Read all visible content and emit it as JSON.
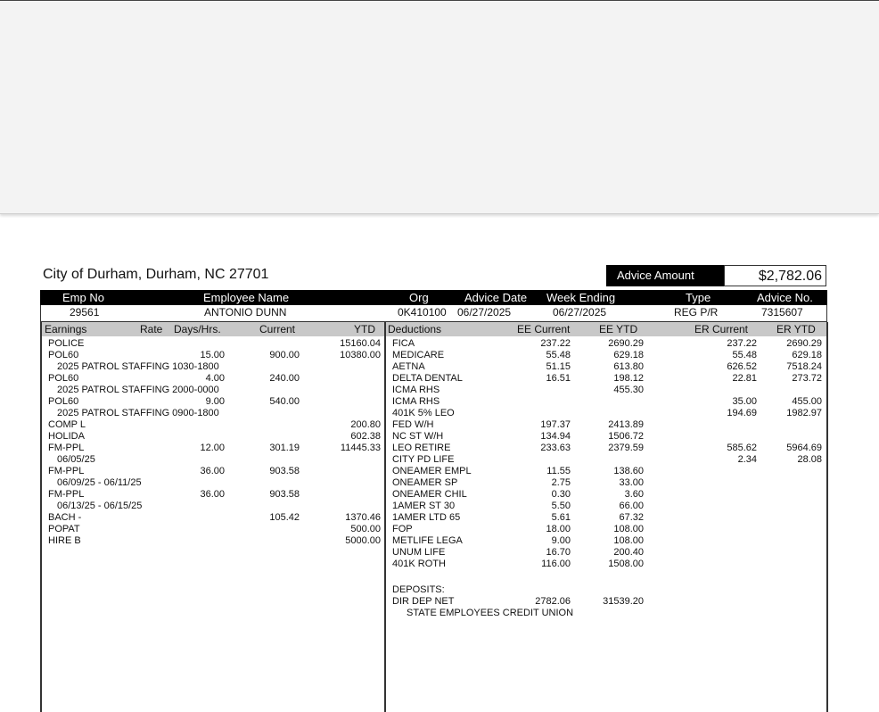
{
  "employer": "City of Durham, Durham, NC 27701",
  "advice_amount": {
    "label": "Advice Amount",
    "value": "$2,782.06"
  },
  "header": {
    "emp_no": "Emp No",
    "employee_name": "Employee Name",
    "org": "Org",
    "advice_date": "Advice Date",
    "week_ending": "Week Ending",
    "type": "Type",
    "advice_no": "Advice No."
  },
  "values": {
    "emp_no": "29561",
    "employee_name": "ANTONIO DUNN",
    "org": "0K410100",
    "advice_date": "06/27/2025",
    "week_ending": "06/27/2025",
    "type": "REG P/R",
    "advice_no": "7315607"
  },
  "earnings_header": {
    "earnings": "Earnings",
    "rate": "Rate",
    "days": "Days/Hrs.",
    "current": "Current",
    "ytd": "YTD"
  },
  "deductions_header": {
    "deductions": "Deductions",
    "ee_current": "EE Current",
    "ee_ytd": "EE YTD",
    "er_current": "ER Current",
    "er_ytd": "ER YTD"
  },
  "earnings": [
    {
      "name": "POLICE",
      "days": "",
      "current": "",
      "ytd": "15160.04"
    },
    {
      "name": "POL60",
      "days": "15.00",
      "current": "900.00",
      "ytd": "10380.00"
    },
    {
      "note": "2025 PATROL STAFFING 1030-1800"
    },
    {
      "name": "POL60",
      "days": "4.00",
      "current": "240.00",
      "ytd": ""
    },
    {
      "note": "2025 PATROL STAFFING 2000-0000"
    },
    {
      "name": "POL60",
      "days": "9.00",
      "current": "540.00",
      "ytd": ""
    },
    {
      "note": "2025 PATROL STAFFING 0900-1800"
    },
    {
      "name": "COMP L",
      "days": "",
      "current": "",
      "ytd": "200.80"
    },
    {
      "name": "HOLIDA",
      "days": "",
      "current": "",
      "ytd": "602.38"
    },
    {
      "name": "FM-PPL",
      "days": "12.00",
      "current": "301.19",
      "ytd": "11445.33"
    },
    {
      "note": "06/05/25"
    },
    {
      "name": "FM-PPL",
      "days": "36.00",
      "current": "903.58",
      "ytd": ""
    },
    {
      "note": "06/09/25 - 06/11/25"
    },
    {
      "name": "FM-PPL",
      "days": "36.00",
      "current": "903.58",
      "ytd": ""
    },
    {
      "note": "06/13/25 - 06/15/25"
    },
    {
      "name": "BACH -",
      "days": "",
      "current": "105.42",
      "ytd": "1370.46"
    },
    {
      "name": "POPAT",
      "days": "",
      "current": "",
      "ytd": "500.00"
    },
    {
      "name": "HIRE B",
      "days": "",
      "current": "",
      "ytd": "5000.00"
    }
  ],
  "deductions": [
    {
      "name": "FICA",
      "ee_current": "237.22",
      "ee_ytd": "2690.29",
      "er_current": "237.22",
      "er_ytd": "2690.29"
    },
    {
      "name": "MEDICARE",
      "ee_current": "55.48",
      "ee_ytd": "629.18",
      "er_current": "55.48",
      "er_ytd": "629.18"
    },
    {
      "name": "AETNA",
      "ee_current": "51.15",
      "ee_ytd": "613.80",
      "er_current": "626.52",
      "er_ytd": "7518.24"
    },
    {
      "name": "DELTA DENTAL",
      "ee_current": "16.51",
      "ee_ytd": "198.12",
      "er_current": "22.81",
      "er_ytd": "273.72"
    },
    {
      "name": "ICMA RHS",
      "ee_current": "",
      "ee_ytd": "455.30",
      "er_current": "",
      "er_ytd": ""
    },
    {
      "name": "ICMA RHS",
      "ee_current": "",
      "ee_ytd": "",
      "er_current": "35.00",
      "er_ytd": "455.00"
    },
    {
      "name": "401K 5% LEO",
      "ee_current": "",
      "ee_ytd": "",
      "er_current": "194.69",
      "er_ytd": "1982.97"
    },
    {
      "name": "FED W/H",
      "ee_current": "197.37",
      "ee_ytd": "2413.89",
      "er_current": "",
      "er_ytd": ""
    },
    {
      "name": "NC ST W/H",
      "ee_current": "134.94",
      "ee_ytd": "1506.72",
      "er_current": "",
      "er_ytd": ""
    },
    {
      "name": "LEO RETIRE",
      "ee_current": "233.63",
      "ee_ytd": "2379.59",
      "er_current": "585.62",
      "er_ytd": "5964.69"
    },
    {
      "name": "CITY PD LIFE",
      "ee_current": "",
      "ee_ytd": "",
      "er_current": "2.34",
      "er_ytd": "28.08"
    },
    {
      "name": "ONEAMER EMPL",
      "ee_current": "11.55",
      "ee_ytd": "138.60",
      "er_current": "",
      "er_ytd": ""
    },
    {
      "name": "ONEAMER SP",
      "ee_current": "2.75",
      "ee_ytd": "33.00",
      "er_current": "",
      "er_ytd": ""
    },
    {
      "name": "ONEAMER CHIL",
      "ee_current": "0.30",
      "ee_ytd": "3.60",
      "er_current": "",
      "er_ytd": ""
    },
    {
      "name": "1AMER ST 30",
      "ee_current": "5.50",
      "ee_ytd": "66.00",
      "er_current": "",
      "er_ytd": ""
    },
    {
      "name": "1AMER LTD 65",
      "ee_current": "5.61",
      "ee_ytd": "67.32",
      "er_current": "",
      "er_ytd": ""
    },
    {
      "name": "FOP",
      "ee_current": "18.00",
      "ee_ytd": "108.00",
      "er_current": "",
      "er_ytd": ""
    },
    {
      "name": "METLIFE LEGA",
      "ee_current": "9.00",
      "ee_ytd": "108.00",
      "er_current": "",
      "er_ytd": ""
    },
    {
      "name": "UNUM LIFE",
      "ee_current": "16.70",
      "ee_ytd": "200.40",
      "er_current": "",
      "er_ytd": ""
    },
    {
      "name": "401K ROTH",
      "ee_current": "116.00",
      "ee_ytd": "1508.00",
      "er_current": "",
      "er_ytd": ""
    }
  ],
  "deposits": {
    "label": "DEPOSITS:",
    "name": "DIR DEP NET",
    "ee_current": "2782.06",
    "ee_ytd": "31539.20",
    "bank": "STATE EMPLOYEES CREDIT UNION"
  }
}
